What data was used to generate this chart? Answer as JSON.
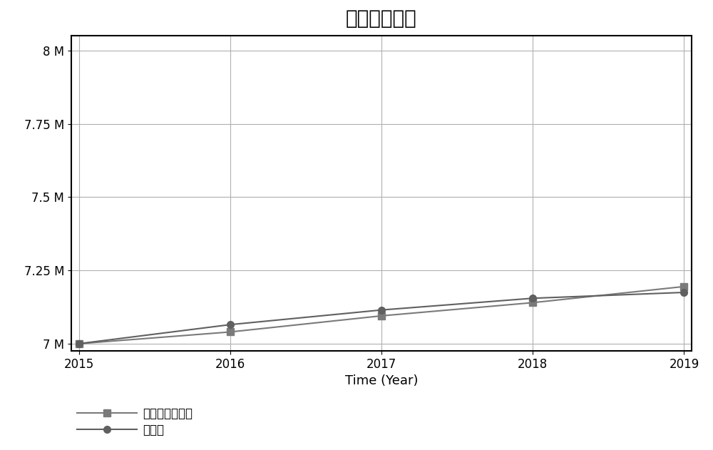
{
  "title": "人口数（人）",
  "xlabel": "Time (Year)",
  "x_years": [
    2015,
    2016,
    2017,
    2018,
    2019
  ],
  "simulated_values": [
    7000000,
    7040000,
    7095000,
    7140000,
    7195000
  ],
  "real_values": [
    7000000,
    7065000,
    7115000,
    7155000,
    7175000
  ],
  "ylim": [
    6975000,
    8050000
  ],
  "xlim_min": 2015,
  "xlim_max": 2019,
  "yticks": [
    7000000,
    7250000,
    7500000,
    7750000,
    8000000
  ],
  "ytick_labels": [
    "7 M",
    "7.25 M",
    "7.5 M",
    "7.75 M",
    "8 M"
  ],
  "xticks": [
    2015,
    2016,
    2017,
    2018,
    2019
  ],
  "line_color_simulated": "#7a7a7a",
  "line_color_real": "#606060",
  "marker_simulated": "s",
  "marker_real": "o",
  "legend_label_simulated": "人口数：模拟値",
  "legend_label_real": "真实値",
  "background_color": "#ffffff",
  "grid_color": "#b0b0b0",
  "title_fontsize": 20,
  "axis_label_fontsize": 13,
  "tick_fontsize": 12,
  "legend_fontsize": 12,
  "markersize": 7,
  "linewidth": 1.5
}
